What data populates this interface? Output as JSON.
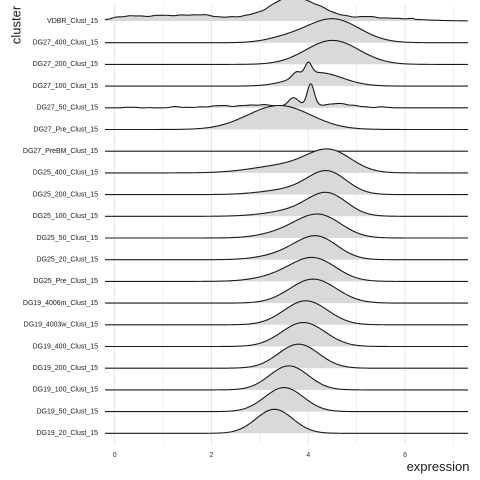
{
  "chart_data": {
    "type": "ridgeline",
    "xlabel": "expression",
    "ylabel": "cluster",
    "xlim": [
      -0.2,
      7.3
    ],
    "xticks": [
      0,
      2,
      4,
      6
    ],
    "grid": "vertical-major-and-minor",
    "fill_color": "#d9d9d9",
    "line_color": "#1a1a1a",
    "grid_color": "#e6e6e6",
    "categories": [
      "VDBR_Clust_15",
      "DG27_400_Clust_15",
      "DG27_200_Clust_15",
      "DG27_100_Clust_15",
      "DG27_50_Clust_15",
      "DG27_Pre_Clust_15",
      "DG27_PreBM_Clust_15",
      "DG25_400_Clust_15",
      "DG25_200_Clust_15",
      "DG25_100_Clust_15",
      "DG25_50_Clust_15",
      "DG25_20_Clust_15",
      "DG25_Pre_Clust_15",
      "DG19_4006m_Clust_15",
      "DG19_4003w_Clust_15",
      "DG19_400_Clust_15",
      "DG19_200_Clust_15",
      "DG19_100_Clust_15",
      "DG19_50_Clust_15",
      "DG19_20_Clust_15"
    ],
    "series": [
      {
        "components": [
          [
            3.7,
            0.5,
            0.75
          ],
          [
            1.5,
            0.8,
            0.2
          ],
          [
            0.3,
            0.3,
            0.1
          ],
          [
            5.2,
            0.8,
            0.12
          ]
        ]
      },
      {
        "components": [
          [
            4.5,
            0.55,
            1.0
          ],
          [
            3.5,
            0.4,
            0.15
          ]
        ]
      },
      {
        "components": [
          [
            4.5,
            0.55,
            1.0
          ]
        ]
      },
      {
        "components": [
          [
            4.2,
            0.5,
            0.65
          ],
          [
            4.0,
            0.07,
            0.55
          ],
          [
            3.75,
            0.08,
            0.25
          ]
        ]
      },
      {
        "components": [
          [
            4.05,
            0.07,
            1.0
          ],
          [
            3.7,
            0.1,
            0.35
          ],
          [
            3.0,
            0.9,
            0.12
          ],
          [
            4.6,
            0.4,
            0.15
          ]
        ]
      },
      {
        "components": [
          [
            3.4,
            0.65,
            1.0
          ]
        ]
      },
      {
        "components": [
          [
            3.9,
            0.6,
            0.0
          ]
        ]
      },
      {
        "components": [
          [
            4.45,
            0.45,
            1.0
          ],
          [
            3.6,
            0.7,
            0.4
          ]
        ]
      },
      {
        "components": [
          [
            4.4,
            0.4,
            1.0
          ],
          [
            3.7,
            0.6,
            0.25
          ]
        ]
      },
      {
        "components": [
          [
            4.4,
            0.4,
            1.0
          ],
          [
            3.8,
            0.6,
            0.3
          ]
        ]
      },
      {
        "components": [
          [
            4.25,
            0.45,
            1.0
          ],
          [
            3.6,
            0.5,
            0.3
          ]
        ]
      },
      {
        "components": [
          [
            4.2,
            0.42,
            1.0
          ],
          [
            3.6,
            0.5,
            0.3
          ]
        ]
      },
      {
        "components": [
          [
            4.15,
            0.45,
            1.0
          ],
          [
            3.6,
            0.55,
            0.35
          ]
        ]
      },
      {
        "components": [
          [
            4.1,
            0.48,
            1.0
          ]
        ]
      },
      {
        "components": [
          [
            3.95,
            0.45,
            1.0
          ]
        ]
      },
      {
        "components": [
          [
            3.9,
            0.45,
            1.0
          ]
        ]
      },
      {
        "components": [
          [
            3.8,
            0.42,
            1.0
          ]
        ]
      },
      {
        "components": [
          [
            3.6,
            0.4,
            1.0
          ]
        ]
      },
      {
        "components": [
          [
            3.5,
            0.4,
            1.0
          ]
        ]
      },
      {
        "components": [
          [
            3.3,
            0.38,
            1.0
          ]
        ]
      }
    ]
  }
}
